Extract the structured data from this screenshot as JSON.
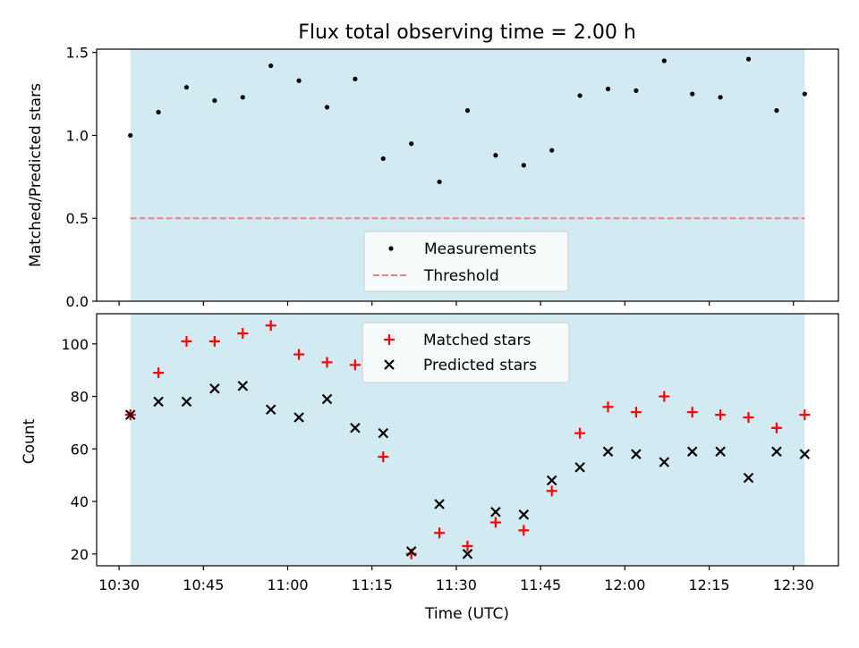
{
  "chart_data": [
    {
      "type": "scatter",
      "title": "Flux total observing time = 2.00 h",
      "ylabel": "Matched/Predicted stars",
      "ylim": [
        0,
        1.52
      ],
      "yticks": [
        "0.0",
        "0.5",
        "1.0",
        "1.5"
      ],
      "ytick_values": [
        0,
        0.5,
        1.0,
        1.5
      ],
      "shaded_span": [
        "10:32",
        "12:32"
      ],
      "shade_color": "#add8e6",
      "grid": false,
      "legend_position": "lower-center",
      "x": [
        "10:32",
        "10:37",
        "10:42",
        "10:47",
        "10:52",
        "10:57",
        "11:02",
        "11:07",
        "11:12",
        "11:17",
        "11:22",
        "11:27",
        "11:32",
        "11:37",
        "11:42",
        "11:47",
        "11:52",
        "11:57",
        "12:02",
        "12:07",
        "12:12",
        "12:17",
        "12:22",
        "12:27",
        "12:32"
      ],
      "series": [
        {
          "name": "Measurements",
          "color": "#000000",
          "marker": "dot",
          "values": [
            1.0,
            1.14,
            1.29,
            1.21,
            1.23,
            1.42,
            1.33,
            1.17,
            1.34,
            0.86,
            0.95,
            0.72,
            1.15,
            0.88,
            0.82,
            0.91,
            1.24,
            1.28,
            1.27,
            1.45,
            1.25,
            1.23,
            1.46,
            1.15,
            1.25
          ]
        },
        {
          "name": "Threshold",
          "color": "#f08080",
          "style": "dashed",
          "values": [
            0.5,
            0.5
          ]
        }
      ]
    },
    {
      "type": "scatter",
      "xlabel": "Time (UTC)",
      "ylabel": "Count",
      "ylim": [
        15.5,
        111.5
      ],
      "yticks": [
        "20",
        "40",
        "60",
        "80",
        "100"
      ],
      "ytick_values": [
        20,
        40,
        60,
        80,
        100
      ],
      "xticks": [
        "10:30",
        "10:45",
        "11:00",
        "11:15",
        "11:30",
        "11:45",
        "12:00",
        "12:15",
        "12:30"
      ],
      "xlim": [
        "10:26",
        "12:38"
      ],
      "shaded_span": [
        "10:32",
        "12:32"
      ],
      "grid": false,
      "legend_position": "upper-center",
      "x": [
        "10:32",
        "10:37",
        "10:42",
        "10:47",
        "10:52",
        "10:57",
        "11:02",
        "11:07",
        "11:12",
        "11:17",
        "11:22",
        "11:27",
        "11:32",
        "11:37",
        "11:42",
        "11:47",
        "11:52",
        "11:57",
        "12:02",
        "12:07",
        "12:12",
        "12:17",
        "12:22",
        "12:27",
        "12:32"
      ],
      "series": [
        {
          "name": "Matched stars",
          "color": "#ff0000",
          "marker": "plus",
          "values": [
            73,
            89,
            101,
            101,
            104,
            107,
            96,
            93,
            92,
            57,
            20,
            28,
            23,
            32,
            29,
            44,
            66,
            76,
            74,
            80,
            74,
            73,
            72,
            68,
            73
          ]
        },
        {
          "name": "Predicted stars",
          "color": "#000000",
          "marker": "x",
          "values": [
            73,
            78,
            78,
            83,
            84,
            75,
            72,
            79,
            68,
            66,
            21,
            39,
            20,
            36,
            35,
            48,
            53,
            59,
            58,
            55,
            59,
            59,
            49,
            59,
            58
          ]
        }
      ]
    }
  ]
}
